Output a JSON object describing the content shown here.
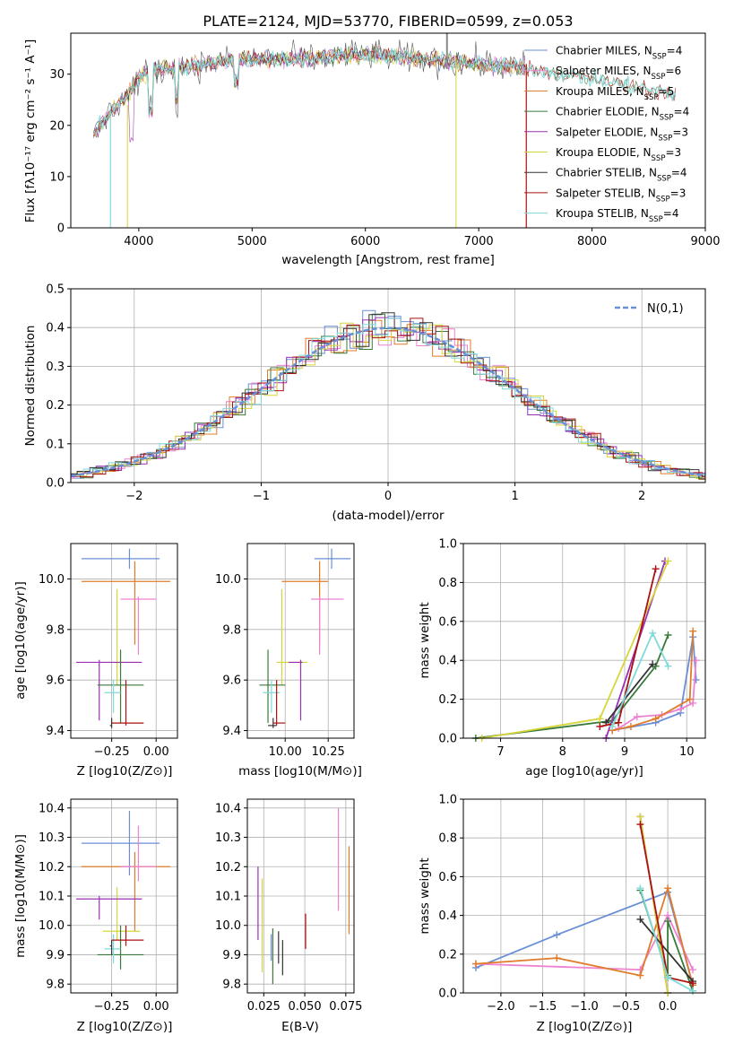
{
  "colors": {
    "chabrier_miles": "#6a8fd6",
    "salpeter_miles": "#ee82d0",
    "kroupa_miles": "#e07b2a",
    "chabrier_elodie": "#3a7a3a",
    "salpeter_elodie": "#9a32b4",
    "kroupa_elodie": "#d6d63a",
    "chabrier_stelib": "#333333",
    "salpeter_stelib": "#aa1111",
    "kroupa_stelib": "#7fdada",
    "gauss": "#6a8fd6"
  },
  "chart_data": [
    {
      "id": "spectrum",
      "type": "line",
      "title": "PLATE=2124, MJD=53770, FIBERID=0599, z=0.053",
      "xlabel": "wavelength [Angstrom, rest frame]",
      "ylabel": "Flux [fλ10⁻¹⁷ erg cm⁻² s⁻¹ A⁻¹]",
      "xlim": [
        3400,
        9000
      ],
      "ylim": [
        0,
        38
      ],
      "xticks": [
        "4000",
        "5000",
        "6000",
        "7000",
        "8000",
        "9000"
      ],
      "yticks": [
        "0",
        "10",
        "20",
        "30"
      ],
      "legend_position": "upper-right",
      "series": [
        {
          "name": "Chabrier MILES, N_SSP=4",
          "color_key": "chabrier_miles"
        },
        {
          "name": "Salpeter MILES, N_SSP=6",
          "color_key": "salpeter_miles"
        },
        {
          "name": "Kroupa MILES, N_SSP=5",
          "color_key": "kroupa_miles"
        },
        {
          "name": "Chabrier ELODIE, N_SSP=4",
          "color_key": "chabrier_elodie"
        },
        {
          "name": "Salpeter ELODIE, N_SSP=3",
          "color_key": "salpeter_elodie"
        },
        {
          "name": "Kroupa ELODIE, N_SSP=3",
          "color_key": "kroupa_elodie"
        },
        {
          "name": "Chabrier STELIB, N_SSP=4",
          "color_key": "chabrier_stelib"
        },
        {
          "name": "Salpeter STELIB, N_SSP=3",
          "color_key": "salpeter_stelib"
        },
        {
          "name": "Kroupa STELIB, N_SSP=4",
          "color_key": "kroupa_stelib"
        }
      ],
      "continuum": {
        "x": [
          3600,
          3700,
          3800,
          3900,
          4000,
          4100,
          4300,
          4600,
          5000,
          5500,
          6000,
          6500,
          7000,
          7500,
          8000,
          8500,
          8750
        ],
        "y": [
          18,
          21,
          24,
          26,
          29,
          31,
          31,
          32,
          33,
          33,
          34,
          33,
          32,
          31,
          29,
          27,
          26
        ]
      }
    },
    {
      "id": "residuals",
      "type": "line",
      "xlabel": "(data-model)/error",
      "ylabel": "Normed distribution",
      "xlim": [
        -2.5,
        2.5
      ],
      "ylim": [
        0,
        0.5
      ],
      "xticks": [
        "−2",
        "−1",
        "0",
        "1",
        "2"
      ],
      "yticks": [
        "0.0",
        "0.1",
        "0.2",
        "0.3",
        "0.4",
        "0.5"
      ],
      "legend_position": "upper-right",
      "gauss_label": "N(0,1)"
    },
    {
      "id": "age_vs_Z",
      "type": "scatter",
      "xlabel": "Z [log10(Z/Z⊙)]",
      "ylabel": "age [log10(age/yr)]",
      "xlim": [
        -0.48,
        0.12
      ],
      "ylim": [
        9.37,
        10.14
      ],
      "xticks": [
        "−0.25",
        "0.00"
      ],
      "yticks": [
        "9.4",
        "9.6",
        "9.8",
        "10.0"
      ],
      "points": [
        {
          "c": "chabrier_miles",
          "x": -0.15,
          "xl": -0.42,
          "xh": 0.02,
          "y": 10.08,
          "yl": 10.04,
          "yh": 10.12
        },
        {
          "c": "kroupa_miles",
          "x": -0.12,
          "xl": -0.42,
          "xh": 0.08,
          "y": 9.99,
          "yl": 9.74,
          "yh": 10.07
        },
        {
          "c": "salpeter_miles",
          "x": -0.1,
          "xl": -0.2,
          "xh": 0.0,
          "y": 9.92,
          "yl": 9.7,
          "yh": 9.93
        },
        {
          "c": "kroupa_elodie",
          "x": -0.22,
          "xl": -0.3,
          "xh": -0.09,
          "y": 9.67,
          "yl": 9.58,
          "yh": 9.96
        },
        {
          "c": "salpeter_elodie",
          "x": -0.32,
          "xl": -0.45,
          "xh": -0.08,
          "y": 9.67,
          "yl": 9.44,
          "yh": 9.68
        },
        {
          "c": "chabrier_elodie",
          "x": -0.2,
          "xl": -0.33,
          "xh": -0.07,
          "y": 9.58,
          "yl": 9.43,
          "yh": 9.72
        },
        {
          "c": "kroupa_stelib",
          "x": -0.24,
          "xl": -0.29,
          "xh": -0.2,
          "y": 9.55,
          "yl": 9.47,
          "yh": 9.6
        },
        {
          "c": "chabrier_stelib",
          "x": -0.25,
          "xl": -0.26,
          "xh": -0.25,
          "y": 9.42,
          "yl": 9.41,
          "yh": 9.45
        },
        {
          "c": "salpeter_stelib",
          "x": -0.17,
          "xl": -0.25,
          "xh": -0.07,
          "y": 9.43,
          "yl": 9.42,
          "yh": 9.6
        }
      ]
    },
    {
      "id": "age_vs_mass",
      "type": "scatter",
      "xlabel": "mass [log10(M/M⊙)]",
      "ylabel": "",
      "xlim": [
        9.78,
        10.4
      ],
      "ylim": [
        9.37,
        10.14
      ],
      "xticks": [
        "10.00",
        "10.25"
      ],
      "yticks": [
        "9.4",
        "9.6",
        "9.8",
        "10.0"
      ],
      "points": [
        {
          "c": "chabrier_miles",
          "x": 10.27,
          "xl": 10.17,
          "xh": 10.38,
          "y": 10.08,
          "yl": 10.04,
          "yh": 10.12
        },
        {
          "c": "kroupa_miles",
          "x": 10.2,
          "xl": 9.98,
          "xh": 10.25,
          "y": 9.99,
          "yl": 9.74,
          "yh": 10.07
        },
        {
          "c": "salpeter_miles",
          "x": 10.2,
          "xl": 10.15,
          "xh": 10.34,
          "y": 9.92,
          "yl": 9.7,
          "yh": 9.93
        },
        {
          "c": "kroupa_elodie",
          "x": 9.98,
          "xl": 9.95,
          "xh": 10.13,
          "y": 9.67,
          "yl": 9.58,
          "yh": 9.96
        },
        {
          "c": "salpeter_elodie",
          "x": 10.09,
          "xl": 10.02,
          "xh": 10.1,
          "y": 9.67,
          "yl": 9.44,
          "yh": 9.68
        },
        {
          "c": "chabrier_elodie",
          "x": 9.9,
          "xl": 9.85,
          "xh": 10.0,
          "y": 9.58,
          "yl": 9.43,
          "yh": 9.72
        },
        {
          "c": "kroupa_stelib",
          "x": 9.92,
          "xl": 9.87,
          "xh": 9.97,
          "y": 9.55,
          "yl": 9.47,
          "yh": 9.6
        },
        {
          "c": "chabrier_stelib",
          "x": 9.93,
          "xl": 9.9,
          "xh": 9.95,
          "y": 9.42,
          "yl": 9.41,
          "yh": 9.45
        },
        {
          "c": "salpeter_stelib",
          "x": 9.95,
          "xl": 9.93,
          "xh": 10.0,
          "y": 9.43,
          "yl": 9.42,
          "yh": 9.6
        }
      ]
    },
    {
      "id": "mass_weight_vs_age",
      "type": "line",
      "xlabel": "age [log10(age/yr)]",
      "ylabel": "mass weight",
      "xlim": [
        6.4,
        10.3
      ],
      "ylim": [
        0,
        1
      ],
      "xticks": [
        "7",
        "8",
        "9",
        "10"
      ],
      "yticks": [
        "0.0",
        "0.2",
        "0.4",
        "0.6",
        "0.8",
        "1.0"
      ],
      "series": [
        {
          "c": "chabrier_miles",
          "x": [
            8.8,
            9.5,
            9.9,
            10.1,
            10.15
          ],
          "y": [
            0.04,
            0.08,
            0.13,
            0.52,
            0.3
          ]
        },
        {
          "c": "salpeter_miles",
          "x": [
            8.9,
            9.2,
            9.6,
            9.9,
            10.1,
            10.15
          ],
          "y": [
            0.05,
            0.11,
            0.12,
            0.15,
            0.18,
            0.4
          ]
        },
        {
          "c": "kroupa_miles",
          "x": [
            8.8,
            9.1,
            9.5,
            10.05,
            10.1
          ],
          "y": [
            0.04,
            0.06,
            0.1,
            0.2,
            0.55
          ]
        },
        {
          "c": "chabrier_elodie",
          "x": [
            6.6,
            8.8,
            9.5,
            9.7
          ],
          "y": [
            0.0,
            0.09,
            0.37,
            0.53
          ]
        },
        {
          "c": "salpeter_elodie",
          "x": [
            8.7,
            9.65
          ],
          "y": [
            0.0,
            0.91
          ]
        },
        {
          "c": "kroupa_elodie",
          "x": [
            6.7,
            8.6,
            9.7
          ],
          "y": [
            0.0,
            0.1,
            0.91
          ]
        },
        {
          "c": "chabrier_stelib",
          "x": [
            8.7,
            9.45
          ],
          "y": [
            0.08,
            0.38
          ]
        },
        {
          "c": "salpeter_stelib",
          "x": [
            8.6,
            8.9,
            9.5
          ],
          "y": [
            0.06,
            0.08,
            0.87
          ]
        },
        {
          "c": "kroupa_stelib",
          "x": [
            8.8,
            9.45,
            9.7
          ],
          "y": [
            0.06,
            0.54,
            0.37
          ]
        }
      ]
    },
    {
      "id": "mass_vs_Z",
      "type": "scatter",
      "xlabel": "Z [log10(Z/Z⊙)]",
      "ylabel": "mass [log10(M/M⊙)]",
      "xlim": [
        -0.48,
        0.12
      ],
      "ylim": [
        9.77,
        10.43
      ],
      "xticks": [
        "−0.25",
        "0.00"
      ],
      "yticks": [
        "9.8",
        "9.9",
        "10.0",
        "10.1",
        "10.2",
        "10.3",
        "10.4"
      ],
      "points": [
        {
          "c": "chabrier_miles",
          "x": -0.15,
          "xl": -0.42,
          "xh": 0.02,
          "y": 10.28,
          "yl": 10.17,
          "yh": 10.39
        },
        {
          "c": "kroupa_miles",
          "x": -0.12,
          "xl": -0.42,
          "xh": 0.08,
          "y": 10.2,
          "yl": 9.98,
          "yh": 10.25
        },
        {
          "c": "salpeter_miles",
          "x": -0.1,
          "xl": -0.2,
          "xh": 0.0,
          "y": 10.2,
          "yl": 10.15,
          "yh": 10.34
        },
        {
          "c": "kroupa_elodie",
          "x": -0.22,
          "xl": -0.3,
          "xh": -0.09,
          "y": 9.98,
          "yl": 9.95,
          "yh": 10.13
        },
        {
          "c": "salpeter_elodie",
          "x": -0.32,
          "xl": -0.45,
          "xh": -0.08,
          "y": 10.09,
          "yl": 10.02,
          "yh": 10.1
        },
        {
          "c": "chabrier_elodie",
          "x": -0.2,
          "xl": -0.33,
          "xh": -0.07,
          "y": 9.9,
          "yl": 9.85,
          "yh": 10.0
        },
        {
          "c": "kroupa_stelib",
          "x": -0.24,
          "xl": -0.29,
          "xh": -0.2,
          "y": 9.92,
          "yl": 9.87,
          "yh": 9.97
        },
        {
          "c": "chabrier_stelib",
          "x": -0.25,
          "xl": -0.26,
          "xh": -0.25,
          "y": 9.93,
          "yl": 9.9,
          "yh": 9.95
        },
        {
          "c": "salpeter_stelib",
          "x": -0.17,
          "xl": -0.25,
          "xh": -0.07,
          "y": 9.95,
          "yl": 9.93,
          "yh": 10.0
        }
      ]
    },
    {
      "id": "mass_vs_ebv",
      "type": "scatter",
      "xlabel": "E(B-V)",
      "ylabel": "",
      "xlim": [
        0.015,
        0.08
      ],
      "ylim": [
        9.77,
        10.43
      ],
      "xticks": [
        "0.025",
        "0.050",
        "0.075"
      ],
      "yticks": [
        "9.8",
        "9.9",
        "10.0",
        "10.1",
        "10.2",
        "10.3",
        "10.4"
      ],
      "bars": [
        {
          "c": "salpeter_elodie",
          "x": 0.0215,
          "yl": 9.95,
          "yh": 10.2
        },
        {
          "c": "kroupa_elodie",
          "x": 0.024,
          "yl": 9.84,
          "yh": 10.16
        },
        {
          "c": "chabrier_miles",
          "x": 0.0295,
          "yl": 9.88,
          "yh": 9.97
        },
        {
          "c": "chabrier_elodie",
          "x": 0.0305,
          "yl": 9.8,
          "yh": 9.99
        },
        {
          "c": "chabrier_stelib",
          "x": 0.034,
          "yl": 9.87,
          "yh": 9.98
        },
        {
          "c": "chabrier_stelib",
          "x": 0.0365,
          "yl": 9.83,
          "yh": 9.95
        },
        {
          "c": "salpeter_stelib",
          "x": 0.0505,
          "yl": 9.92,
          "yh": 10.04
        },
        {
          "c": "salpeter_miles",
          "x": 0.0705,
          "yl": 10.05,
          "yh": 10.4
        },
        {
          "c": "kroupa_miles",
          "x": 0.077,
          "yl": 9.97,
          "yh": 10.27
        }
      ]
    },
    {
      "id": "mass_weight_vs_Z",
      "type": "line",
      "xlabel": "Z [log10(Z/Z⊙)]",
      "ylabel": "mass weight",
      "xlim": [
        -2.45,
        0.45
      ],
      "ylim": [
        0,
        1
      ],
      "xticks": [
        "−2.0",
        "−1.5",
        "−1.0",
        "−0.5",
        "0.0"
      ],
      "yticks": [
        "0.0",
        "0.2",
        "0.4",
        "0.6",
        "0.8",
        "1.0"
      ],
      "series": [
        {
          "c": "chabrier_miles",
          "x": [
            -2.3,
            -1.33,
            0.0,
            0.3
          ],
          "y": [
            0.13,
            0.3,
            0.52,
            0.04
          ]
        },
        {
          "c": "salpeter_miles",
          "x": [
            -2.3,
            -0.33,
            0.0,
            0.3
          ],
          "y": [
            0.15,
            0.12,
            0.4,
            0.12
          ]
        },
        {
          "c": "kroupa_miles",
          "x": [
            -2.3,
            -1.33,
            -0.33,
            0.0,
            0.3
          ],
          "y": [
            0.15,
            0.18,
            0.09,
            0.54,
            0.04
          ]
        },
        {
          "c": "chabrier_elodie",
          "x": [
            -0.33,
            0.0,
            0.0,
            0.3
          ],
          "y": [
            0.53,
            0.09,
            0.37,
            0.01
          ]
        },
        {
          "c": "salpeter_elodie",
          "x": [
            -0.33,
            0.0
          ],
          "y": [
            0.91,
            0.0
          ]
        },
        {
          "c": "kroupa_elodie",
          "x": [
            -0.33,
            0.0
          ],
          "y": [
            0.91,
            0.0
          ]
        },
        {
          "c": "chabrier_stelib",
          "x": [
            -0.33,
            0.3
          ],
          "y": [
            0.38,
            0.06
          ]
        },
        {
          "c": "salpeter_stelib",
          "x": [
            -0.33,
            0.0,
            0.3
          ],
          "y": [
            0.87,
            0.08,
            0.05
          ]
        },
        {
          "c": "kroupa_stelib",
          "x": [
            -0.33,
            0.0,
            0.3
          ],
          "y": [
            0.54,
            0.08,
            0.01
          ]
        }
      ]
    }
  ]
}
